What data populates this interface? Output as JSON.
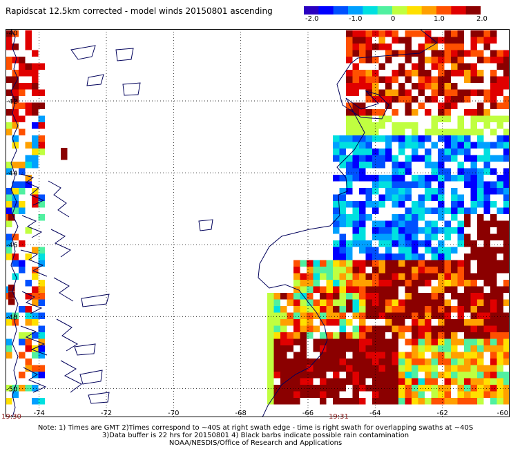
{
  "header": {
    "title": "Rapidscat 12.5km corrected - model winds 20150801 ascending"
  },
  "colorbar": {
    "labels": [
      "-2.0",
      "-1.0",
      "0",
      "1.0",
      "2.0"
    ],
    "min": -2.0,
    "max": 2.0,
    "colors": [
      "#2a00c0",
      "#0000ff",
      "#0050ff",
      "#00a0ff",
      "#00e0e0",
      "#50f0a0",
      "#c0ff40",
      "#ffe000",
      "#ffa000",
      "#ff5000",
      "#e00000",
      "#8b0000"
    ]
  },
  "map": {
    "lon_labels": [
      "-74",
      "-72",
      "-70",
      "-68",
      "-66",
      "-64",
      "-62",
      "-60"
    ],
    "lat_labels": [
      "-40",
      "-42",
      "-44",
      "-46",
      "-48",
      "-50"
    ],
    "lon_range": [
      -75,
      -60
    ],
    "lat_range": [
      -40,
      -50.8
    ],
    "line_color": "#00005a",
    "grid_style": "dotted"
  },
  "times": [
    "19:30",
    "19:31"
  ],
  "notes": [
    "Note: 1) Times are GMT 2)Times correspond to ~40S at right swath edge - time is right swath for overlapping swaths at ~40S",
    "3)Data buffer is 22 hrs for 20150801 4) Black barbs indicate possible rain contamination",
    "NOAA/NESDIS/Office of Research and Applications"
  ]
}
